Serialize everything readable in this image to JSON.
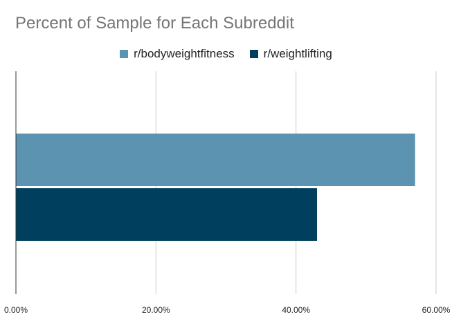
{
  "chart_data": {
    "type": "bar",
    "orientation": "horizontal",
    "title": "Percent of Sample for Each Subreddit",
    "xlabel": "",
    "ylabel": "",
    "xlim": [
      0,
      0.6
    ],
    "x_ticks": [
      0,
      0.2,
      0.4,
      0.6
    ],
    "x_tick_labels": [
      "0.00%",
      "20.00%",
      "40.00%",
      "60.00%"
    ],
    "grid": "vertical",
    "legend_position": "top",
    "series": [
      {
        "name": "r/bodyweightfitness",
        "value": 0.57,
        "color": "#5b93b0"
      },
      {
        "name": "r/weightlifting",
        "value": 0.43,
        "color": "#00405e"
      }
    ]
  }
}
